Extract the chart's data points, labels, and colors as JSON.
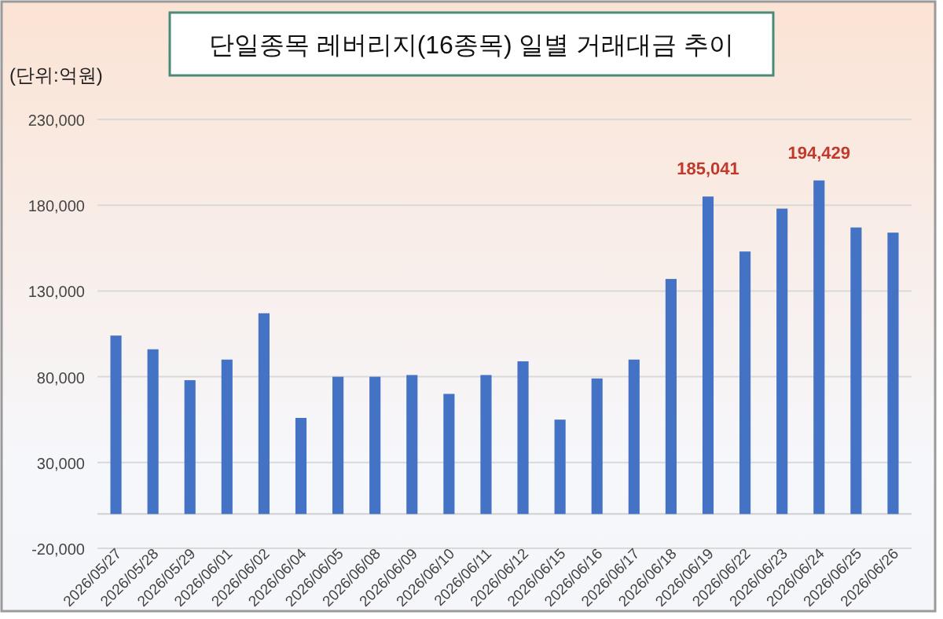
{
  "chart_data": {
    "type": "bar",
    "title": "단일종목 레버리지(16종목) 일별 거래대금 추이",
    "annotations": [
      "(단위:억원)"
    ],
    "categories": [
      "2026/05/27",
      "2026/05/28",
      "2026/05/29",
      "2026/06/01",
      "2026/06/02",
      "2026/06/04",
      "2026/06/05",
      "2026/06/08",
      "2026/06/09",
      "2026/06/10",
      "2026/06/11",
      "2026/06/12",
      "2026/06/15",
      "2026/06/16",
      "2026/06/17",
      "2026/06/18",
      "2026/06/19",
      "2026/06/22",
      "2026/06/23",
      "2026/06/24",
      "2026/06/25",
      "2026/06/26"
    ],
    "values": [
      104000,
      96000,
      78000,
      90000,
      117000,
      56000,
      80000,
      80000,
      81000,
      70000,
      81000,
      89000,
      55000,
      79000,
      90000,
      137000,
      185041,
      153000,
      178000,
      194429,
      167000,
      164000
    ],
    "value_labels": [
      null,
      null,
      null,
      null,
      null,
      null,
      null,
      null,
      null,
      null,
      null,
      null,
      null,
      null,
      null,
      null,
      "185,041",
      null,
      null,
      "194,429",
      null,
      null
    ],
    "color": "#4472c4",
    "ylim": [
      -20000,
      230000
    ],
    "yticks": [
      {
        "value": -20000,
        "label": "-20,000"
      },
      {
        "value": 30000,
        "label": "30,000"
      },
      {
        "value": 80000,
        "label": "80,000"
      },
      {
        "value": 130000,
        "label": "130,000"
      },
      {
        "value": 180000,
        "label": "180,000"
      },
      {
        "value": 230000,
        "label": "230,000"
      }
    ],
    "grid": "y"
  }
}
